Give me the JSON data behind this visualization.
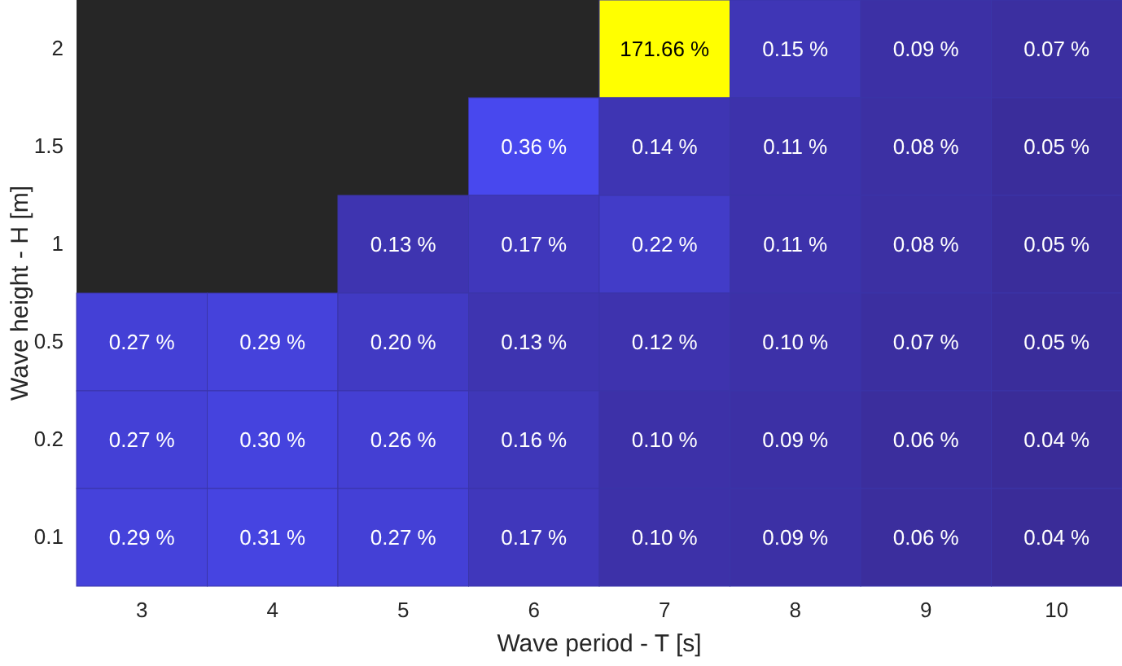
{
  "chart_data": {
    "type": "heatmap",
    "xlabel": "Wave period - T [s]",
    "ylabel": "Wave height - H [m]",
    "categories": [
      "3",
      "4",
      "5",
      "6",
      "7",
      "8",
      "9",
      "10"
    ],
    "y_categories": [
      "2",
      "1.5",
      "1",
      "0.5",
      "0.2",
      "0.1"
    ],
    "cells": [
      [
        null,
        null,
        null,
        null,
        171.66,
        0.15,
        0.09,
        0.07
      ],
      [
        null,
        null,
        null,
        0.36,
        0.14,
        0.11,
        0.08,
        0.05
      ],
      [
        null,
        null,
        0.13,
        0.17,
        0.22,
        0.11,
        0.08,
        0.05
      ],
      [
        0.27,
        0.29,
        0.2,
        0.13,
        0.12,
        0.1,
        0.07,
        0.05
      ],
      [
        0.27,
        0.3,
        0.26,
        0.16,
        0.1,
        0.09,
        0.06,
        0.04
      ],
      [
        0.29,
        0.31,
        0.27,
        0.17,
        0.1,
        0.09,
        0.06,
        0.04
      ]
    ],
    "cell_labels": [
      [
        null,
        null,
        null,
        null,
        "171.66 %",
        "0.15 %",
        "0.09 %",
        "0.07 %"
      ],
      [
        null,
        null,
        null,
        "0.36 %",
        "0.14 %",
        "0.11 %",
        "0.08 %",
        "0.05 %"
      ],
      [
        null,
        null,
        "0.13 %",
        "0.17 %",
        "0.22 %",
        "0.11 %",
        "0.08 %",
        "0.05 %"
      ],
      [
        "0.27 %",
        "0.29 %",
        "0.20 %",
        "0.13 %",
        "0.12 %",
        "0.10 %",
        "0.07 %",
        "0.05 %"
      ],
      [
        "0.27 %",
        "0.30 %",
        "0.26 %",
        "0.16 %",
        "0.10 %",
        "0.09 %",
        "0.06 %",
        "0.04 %"
      ],
      [
        "0.29 %",
        "0.31 %",
        "0.27 %",
        "0.17 %",
        "0.10 %",
        "0.09 %",
        "0.06 %",
        "0.04 %"
      ]
    ]
  }
}
